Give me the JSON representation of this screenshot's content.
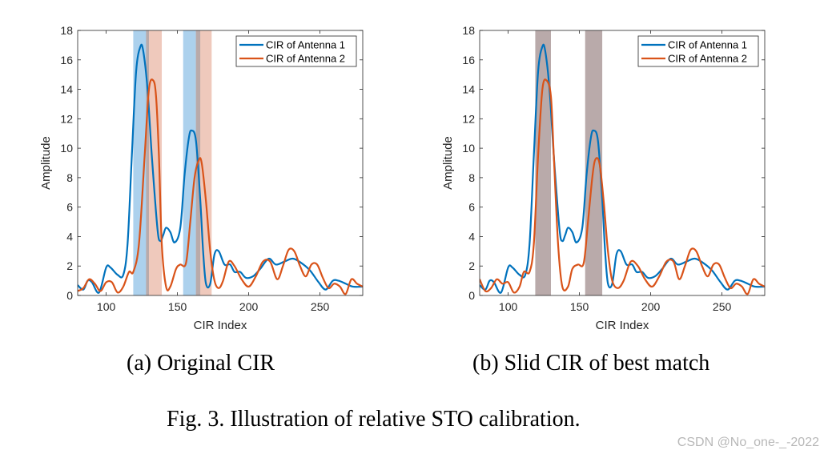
{
  "figure": {
    "subcaption_a": "(a) Original CIR",
    "subcaption_b": "(b) Slid CIR of best match",
    "caption": "Fig. 3.  Illustration of relative STO calibration."
  },
  "watermark": "CSDN @No_one-_-2022",
  "colors": {
    "antenna1": "#0072BD",
    "antenna2": "#D95319",
    "band1": "#9DC9EA",
    "band2": "#EBBBAB",
    "overlap": "#B9AAAA"
  },
  "chart_data": [
    {
      "id": "a",
      "type": "line",
      "title": "",
      "xlabel": "CIR Index",
      "ylabel": "Amplitude",
      "xlim": [
        80,
        280
      ],
      "ylim": [
        0,
        18
      ],
      "xticks": [
        100,
        150,
        200,
        250
      ],
      "yticks": [
        0,
        2,
        4,
        6,
        8,
        10,
        12,
        14,
        16,
        18
      ],
      "legend_position": "top-right",
      "bands": [
        {
          "series": "CIR of Antenna 1",
          "x0": 119,
          "x1": 130
        },
        {
          "series": "CIR of Antenna 1",
          "x0": 154,
          "x1": 166
        },
        {
          "series": "CIR of Antenna 2",
          "x0": 128,
          "x1": 139
        },
        {
          "series": "CIR of Antenna 2",
          "x0": 163,
          "x1": 174
        }
      ],
      "series": [
        {
          "name": "CIR of Antenna 1",
          "x": [
            80,
            84,
            87,
            90,
            95,
            100,
            103,
            108,
            112,
            115,
            118,
            121,
            124,
            126,
            129,
            132,
            136,
            138,
            140,
            142,
            145,
            148,
            152,
            155,
            158,
            160,
            163,
            166,
            168,
            170,
            173,
            176,
            179,
            183,
            187,
            190,
            194,
            198,
            203,
            208,
            214,
            219,
            225,
            231,
            237,
            243,
            249,
            254,
            259,
            263,
            268,
            273,
            280
          ],
          "y": [
            0.7,
            0.4,
            1.0,
            0.9,
            0.2,
            1.9,
            1.9,
            1.4,
            1.4,
            3.5,
            9.5,
            15.2,
            16.9,
            16.6,
            14.0,
            9.5,
            4.5,
            3.7,
            4.1,
            4.6,
            4.3,
            3.6,
            4.6,
            8.2,
            10.7,
            11.2,
            10.5,
            6.5,
            3.0,
            0.8,
            0.8,
            2.8,
            3.0,
            2.1,
            2.1,
            1.6,
            1.6,
            1.2,
            1.3,
            1.8,
            2.5,
            2.1,
            2.3,
            2.5,
            2.2,
            1.7,
            0.9,
            0.4,
            1.0,
            1.0,
            0.8,
            0.6,
            0.6
          ]
        },
        {
          "name": "CIR of Antenna 2",
          "x": [
            80,
            84,
            88,
            92,
            96,
            100,
            104,
            108,
            112,
            116,
            119,
            123,
            127,
            130,
            133,
            135,
            137,
            139,
            142,
            145,
            149,
            152,
            156,
            159,
            162,
            165,
            167,
            170,
            173,
            176,
            179,
            182,
            186,
            190,
            195,
            200,
            205,
            210,
            215,
            220,
            224,
            228,
            232,
            236,
            240,
            244,
            248,
            252,
            256,
            260,
            264,
            268,
            272,
            276,
            280
          ],
          "y": [
            0.3,
            0.5,
            1.1,
            0.8,
            0.3,
            0.9,
            0.9,
            0.2,
            0.6,
            1.6,
            1.6,
            3.5,
            9.5,
            14.0,
            14.6,
            13.5,
            9.5,
            3.5,
            0.6,
            0.6,
            1.8,
            2.1,
            2.2,
            5.0,
            8.0,
            9.2,
            9.0,
            6.4,
            3.0,
            1.0,
            0.5,
            1.0,
            2.3,
            2.0,
            1.1,
            0.6,
            1.3,
            2.3,
            2.3,
            1.1,
            2.0,
            3.1,
            3.0,
            2.0,
            1.3,
            2.1,
            2.1,
            1.2,
            0.5,
            0.8,
            0.6,
            0.1,
            1.1,
            0.8,
            0.6
          ]
        }
      ]
    },
    {
      "id": "b",
      "type": "line",
      "title": "",
      "xlabel": "CIR Index",
      "ylabel": "Amplitude",
      "xlim": [
        80,
        280
      ],
      "ylim": [
        0,
        18
      ],
      "xticks": [
        100,
        150,
        200,
        250
      ],
      "yticks": [
        0,
        2,
        4,
        6,
        8,
        10,
        12,
        14,
        16,
        18
      ],
      "legend_position": "top-right",
      "bands": [
        {
          "series": "overlap",
          "x0": 119,
          "x1": 130
        },
        {
          "series": "overlap",
          "x0": 154,
          "x1": 166
        }
      ],
      "series": [
        {
          "name": "CIR of Antenna 1",
          "x": [
            80,
            84,
            87,
            90,
            95,
            100,
            103,
            108,
            112,
            115,
            118,
            121,
            124,
            126,
            129,
            132,
            136,
            138,
            140,
            142,
            145,
            148,
            152,
            155,
            158,
            160,
            163,
            166,
            168,
            170,
            173,
            176,
            179,
            183,
            187,
            190,
            194,
            198,
            203,
            208,
            214,
            219,
            225,
            231,
            237,
            243,
            249,
            254,
            259,
            263,
            268,
            273,
            280
          ],
          "y": [
            0.7,
            0.4,
            1.0,
            0.9,
            0.2,
            1.9,
            1.9,
            1.4,
            1.4,
            3.5,
            9.5,
            15.2,
            16.9,
            16.6,
            14.0,
            9.5,
            4.5,
            3.7,
            4.1,
            4.6,
            4.3,
            3.6,
            4.6,
            8.2,
            10.7,
            11.2,
            10.5,
            6.5,
            3.0,
            0.8,
            0.8,
            2.8,
            3.0,
            2.1,
            2.1,
            1.6,
            1.6,
            1.2,
            1.3,
            1.8,
            2.5,
            2.1,
            2.3,
            2.5,
            2.2,
            1.7,
            0.9,
            0.4,
            1.0,
            1.0,
            0.8,
            0.6,
            0.6
          ]
        },
        {
          "name": "CIR of Antenna 2",
          "x": [
            80,
            84,
            88,
            92,
            96,
            100,
            104,
            108,
            111,
            115,
            118,
            121,
            124,
            127,
            130,
            132,
            135,
            138,
            142,
            145,
            149,
            153,
            156,
            159,
            161,
            164,
            167,
            170,
            173,
            177,
            181,
            186,
            191,
            196,
            201,
            206,
            211,
            216,
            220,
            224,
            228,
            232,
            236,
            240,
            244,
            248,
            252,
            256,
            260,
            264,
            268,
            272,
            276,
            280
          ],
          "y": [
            1.1,
            0.3,
            0.5,
            1.1,
            0.8,
            0.9,
            0.2,
            0.6,
            1.6,
            1.6,
            3.5,
            9.5,
            14.0,
            14.6,
            13.5,
            9.5,
            3.5,
            0.6,
            0.6,
            1.8,
            2.1,
            2.2,
            5.0,
            8.0,
            9.2,
            9.0,
            6.4,
            3.0,
            1.0,
            0.5,
            1.0,
            2.3,
            2.0,
            1.1,
            0.6,
            1.3,
            2.3,
            2.3,
            1.1,
            2.0,
            3.1,
            3.0,
            2.0,
            1.3,
            2.1,
            2.1,
            1.2,
            0.5,
            0.8,
            0.6,
            0.1,
            1.1,
            0.8,
            0.6
          ]
        }
      ]
    }
  ]
}
